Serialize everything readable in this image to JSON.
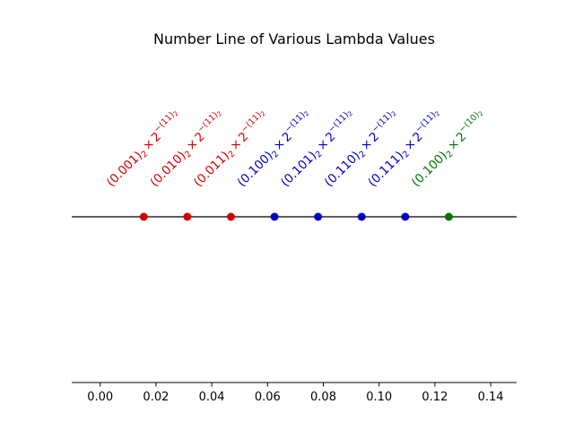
{
  "chart_data": {
    "type": "scatter",
    "title": "Number Line of Various Lambda Values",
    "xlabel": "",
    "ylabel": "",
    "xlim": [
      -0.0102,
      0.1493
    ],
    "grid": false,
    "x_ticks": [
      {
        "value": 0.0,
        "label": "0.00"
      },
      {
        "value": 0.02,
        "label": "0.02"
      },
      {
        "value": 0.04,
        "label": "0.04"
      },
      {
        "value": 0.06,
        "label": "0.06"
      },
      {
        "value": 0.08,
        "label": "0.08"
      },
      {
        "value": 0.1,
        "label": "0.10"
      },
      {
        "value": 0.12,
        "label": "0.12"
      },
      {
        "value": 0.14,
        "label": "0.14"
      }
    ],
    "points": [
      {
        "x": 0.015625,
        "color": "#d40000",
        "mantissa": "(0.001)",
        "base_sub": "2",
        "exp_base": "2",
        "exponent": "−(11)",
        "exp_sub": "2"
      },
      {
        "x": 0.03125,
        "color": "#d40000",
        "mantissa": "(0.010)",
        "base_sub": "2",
        "exp_base": "2",
        "exponent": "−(11)",
        "exp_sub": "2"
      },
      {
        "x": 0.046875,
        "color": "#d40000",
        "mantissa": "(0.011)",
        "base_sub": "2",
        "exp_base": "2",
        "exponent": "−(11)",
        "exp_sub": "2"
      },
      {
        "x": 0.0625,
        "color": "#0000cc",
        "mantissa": "(0.100)",
        "base_sub": "2",
        "exp_base": "2",
        "exponent": "−(11)",
        "exp_sub": "2"
      },
      {
        "x": 0.078125,
        "color": "#0000cc",
        "mantissa": "(0.101)",
        "base_sub": "2",
        "exp_base": "2",
        "exponent": "−(11)",
        "exp_sub": "2"
      },
      {
        "x": 0.09375,
        "color": "#0000cc",
        "mantissa": "(0.110)",
        "base_sub": "2",
        "exp_base": "2",
        "exponent": "−(11)",
        "exp_sub": "2"
      },
      {
        "x": 0.109375,
        "color": "#0000cc",
        "mantissa": "(0.111)",
        "base_sub": "2",
        "exp_base": "2",
        "exponent": "−(11)",
        "exp_sub": "2"
      },
      {
        "x": 0.125,
        "color": "#007700",
        "mantissa": "(0.100)",
        "base_sub": "2",
        "exp_base": "2",
        "exponent": "−(10)",
        "exp_sub": "2"
      }
    ],
    "times_symbol": "×"
  }
}
